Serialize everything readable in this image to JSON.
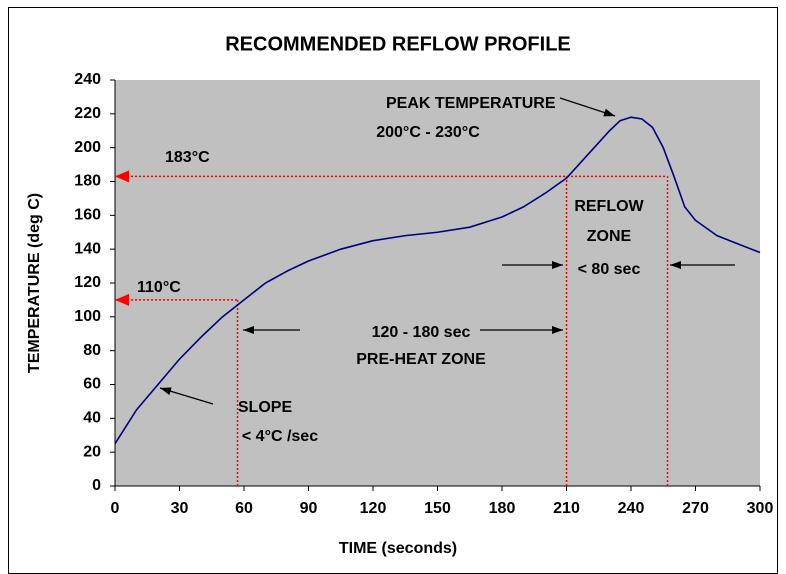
{
  "chart_data": {
    "type": "line",
    "title": "RECOMMENDED REFLOW PROFILE",
    "x_label": "TIME (seconds)",
    "y_label": "TEMPERATURE (deg C)",
    "x": [
      0,
      5,
      10,
      20,
      30,
      40,
      50,
      60,
      70,
      80,
      90,
      105,
      120,
      135,
      150,
      165,
      180,
      190,
      200,
      210,
      220,
      230,
      235,
      240,
      245,
      250,
      255,
      260,
      265,
      270,
      280,
      290,
      300
    ],
    "series": [
      {
        "color": "#000080",
        "values": [
          25,
          35,
          45,
          60,
          75,
          88,
          100,
          110,
          120,
          127,
          133,
          140,
          145,
          148,
          150,
          153,
          159,
          165,
          173,
          182,
          196,
          210,
          216,
          218,
          217,
          212,
          200,
          183,
          165,
          157,
          148,
          143,
          138
        ]
      }
    ],
    "xlim": [
      0,
      300
    ],
    "xticks": [
      0,
      30,
      60,
      90,
      120,
      150,
      180,
      210,
      240,
      270,
      300
    ],
    "ylim": [
      0,
      240
    ],
    "yticks": [
      0,
      20,
      40,
      60,
      80,
      100,
      120,
      140,
      160,
      180,
      200,
      220,
      240
    ],
    "grid": false,
    "reference_lines": [
      {
        "value": 183,
        "label": "183°C",
        "x_end": 257
      },
      {
        "value": 110,
        "label": "110°C",
        "x_end": 57
      }
    ],
    "vertical_lines": [
      {
        "x": 57,
        "y_end": 110
      },
      {
        "x": 210,
        "y_end": 183
      },
      {
        "x": 257,
        "y_end": 183
      }
    ],
    "reference_color": "#ff0000",
    "annotations": [
      "PEAK TEMPERATURE",
      "200°C - 230°C",
      "REFLOW",
      "ZONE",
      "< 80 sec",
      "120 - 180 sec",
      "PRE-HEAT ZONE",
      "SLOPE",
      "< 4°C /sec"
    ]
  }
}
